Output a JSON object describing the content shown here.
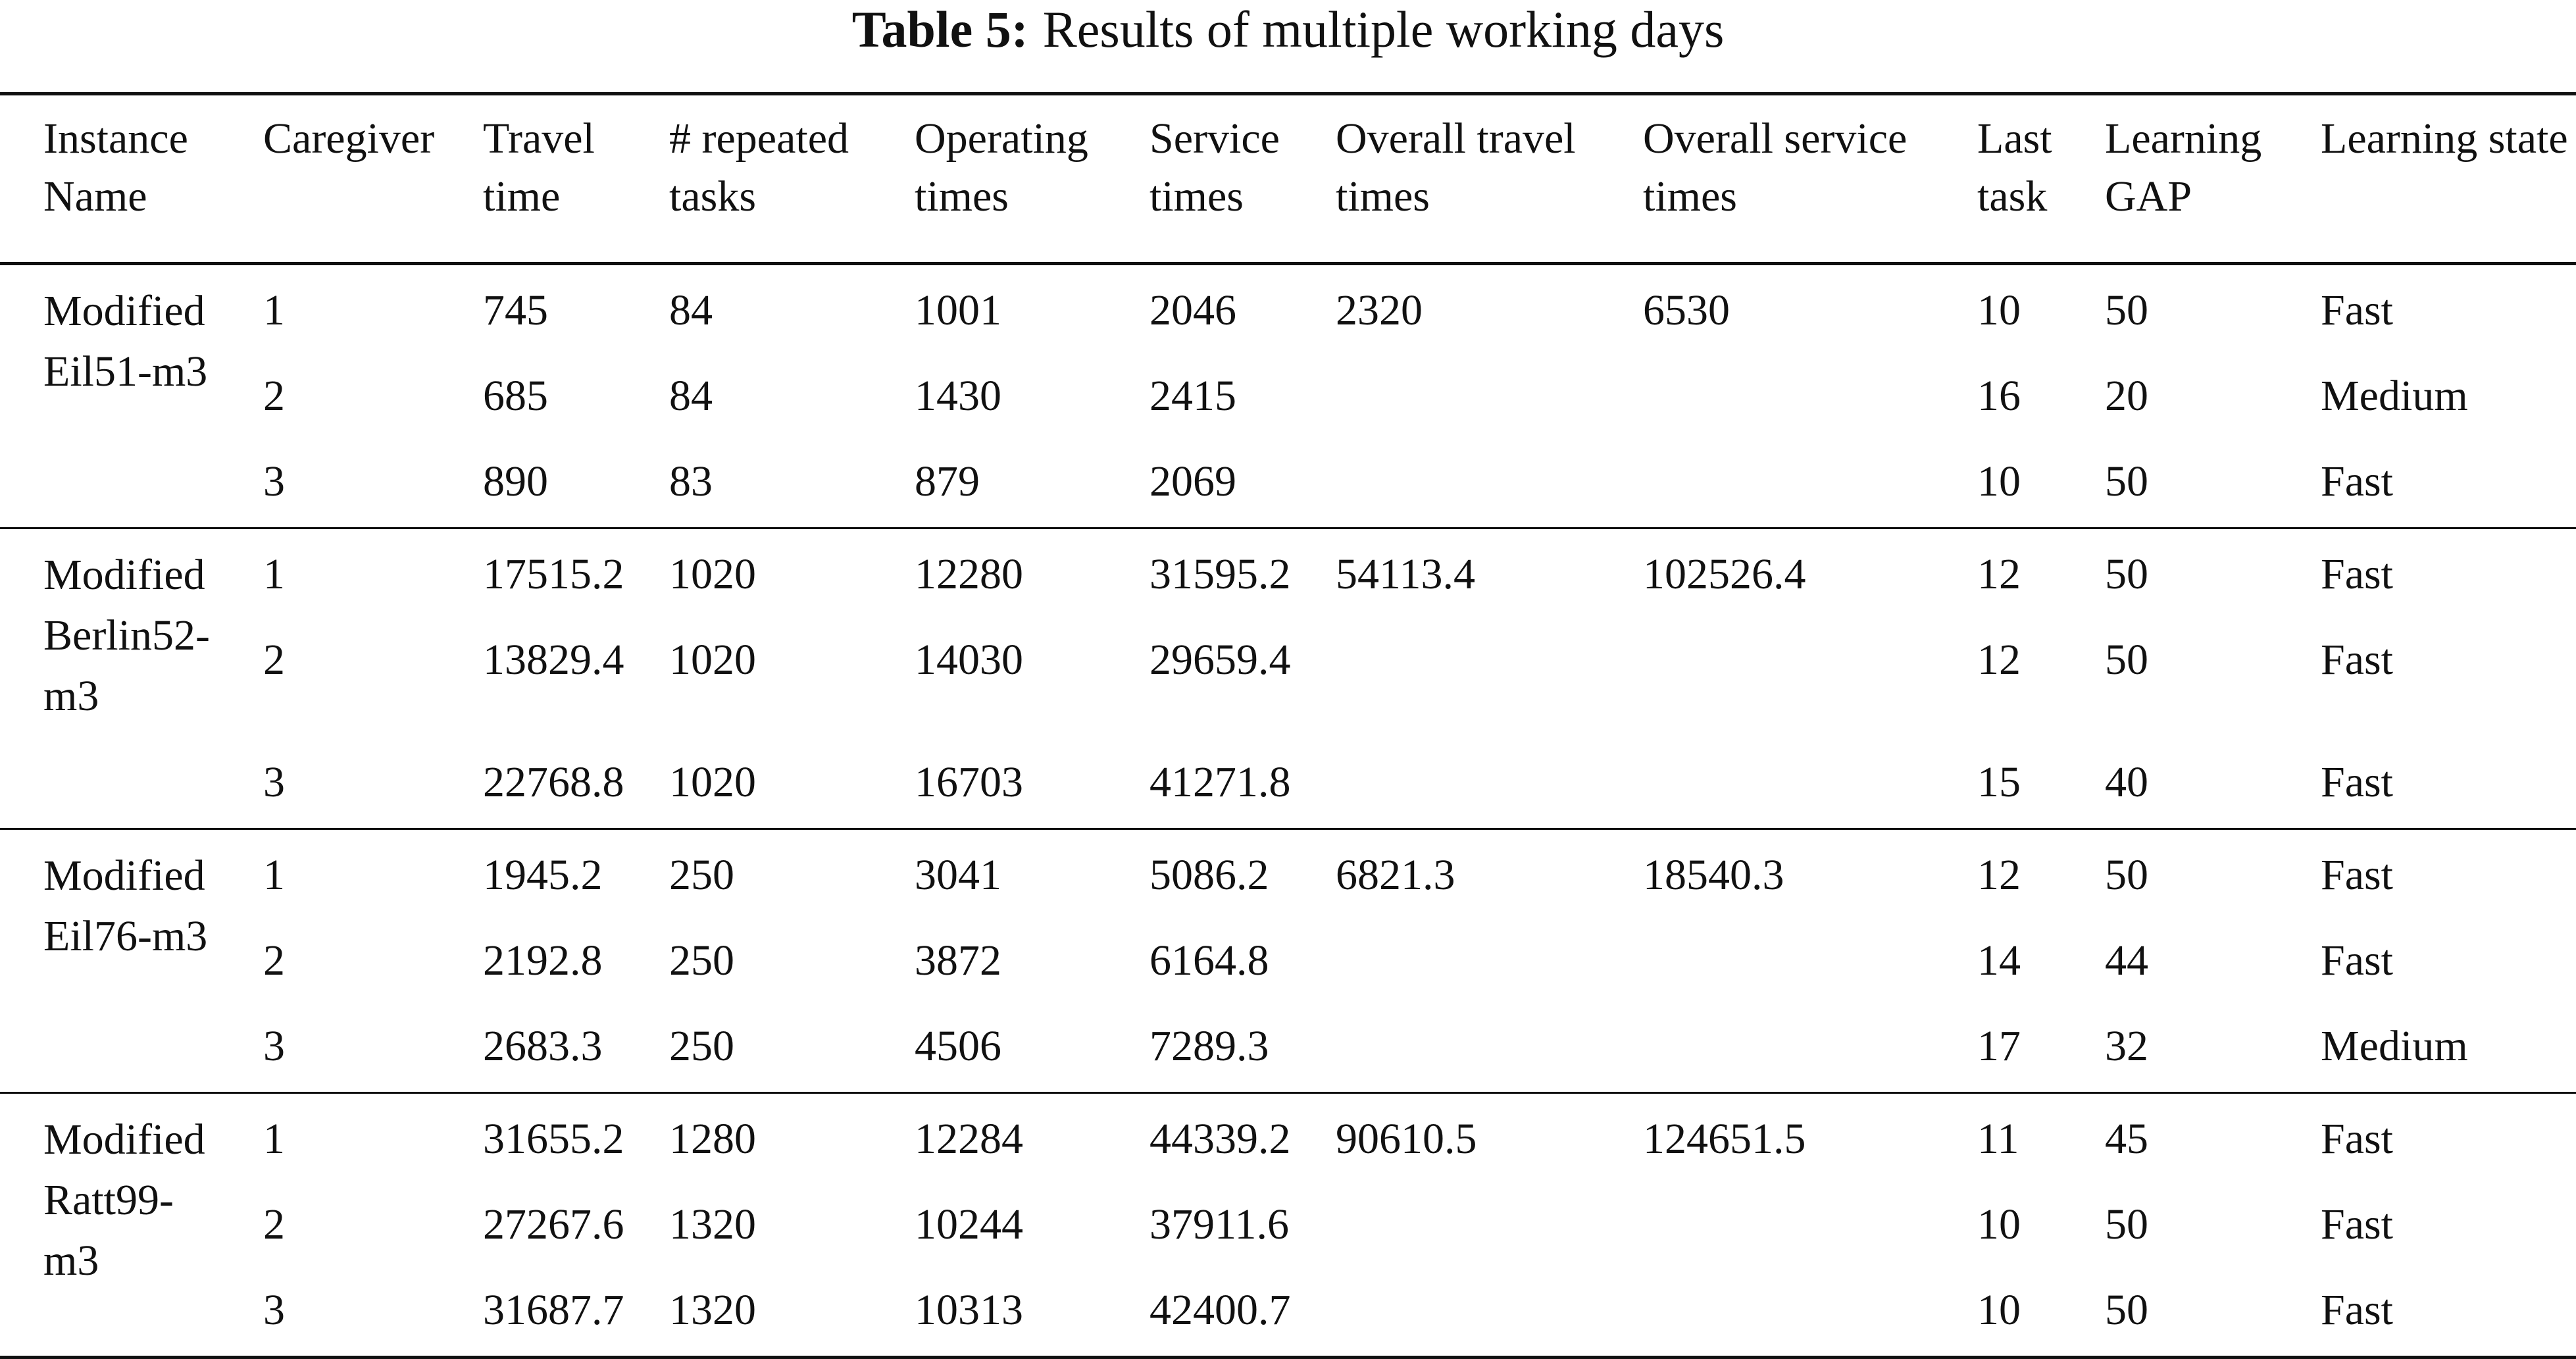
{
  "caption": {
    "label": "Table 5:",
    "text": "Results of multiple working days"
  },
  "columns": [
    "Instance Name",
    "Caregiver",
    "Travel time",
    "# repeated tasks",
    "Operating times",
    "Service times",
    "Overall travel times",
    "Overall service times",
    "Last task",
    "Learning GAP",
    "Learning state"
  ],
  "groups": [
    {
      "instance": "Modified Eil51-m3",
      "overall_travel": "2320",
      "overall_service": "6530",
      "rows": [
        {
          "caregiver": "1",
          "travel": "745",
          "repeated": "84",
          "operating": "1001",
          "service": "2046",
          "last": "10",
          "gap": "50",
          "state": "Fast"
        },
        {
          "caregiver": "2",
          "travel": "685",
          "repeated": "84",
          "operating": "1430",
          "service": "2415",
          "last": "16",
          "gap": "20",
          "state": "Medium"
        },
        {
          "caregiver": "3",
          "travel": "890",
          "repeated": "83",
          "operating": "879",
          "service": "2069",
          "last": "10",
          "gap": "50",
          "state": "Fast"
        }
      ]
    },
    {
      "instance": "Modified Berlin52-m3",
      "overall_travel": "54113.4",
      "overall_service": "102526.4",
      "rows": [
        {
          "caregiver": "1",
          "travel": "17515.2",
          "repeated": "1020",
          "operating": "12280",
          "service": "31595.2",
          "last": "12",
          "gap": "50",
          "state": "Fast"
        },
        {
          "caregiver": "2",
          "travel": "13829.4",
          "repeated": "1020",
          "operating": "14030",
          "service": "29659.4",
          "last": "12",
          "gap": "50",
          "state": "Fast"
        },
        {
          "caregiver": "3",
          "travel": "22768.8",
          "repeated": "1020",
          "operating": "16703",
          "service": "41271.8",
          "last": "15",
          "gap": "40",
          "state": "Fast"
        }
      ]
    },
    {
      "instance": "Modified Eil76-m3",
      "overall_travel": "6821.3",
      "overall_service": "18540.3",
      "rows": [
        {
          "caregiver": "1",
          "travel": "1945.2",
          "repeated": "250",
          "operating": "3041",
          "service": "5086.2",
          "last": "12",
          "gap": "50",
          "state": "Fast"
        },
        {
          "caregiver": "2",
          "travel": "2192.8",
          "repeated": "250",
          "operating": "3872",
          "service": "6164.8",
          "last": "14",
          "gap": "44",
          "state": "Fast"
        },
        {
          "caregiver": "3",
          "travel": "2683.3",
          "repeated": "250",
          "operating": "4506",
          "service": "7289.3",
          "last": "17",
          "gap": "32",
          "state": "Medium"
        }
      ]
    },
    {
      "instance": "Modified Ratt99-m3",
      "overall_travel": "90610.5",
      "overall_service": "124651.5",
      "rows": [
        {
          "caregiver": "1",
          "travel": "31655.2",
          "repeated": "1280",
          "operating": "12284",
          "service": "44339.2",
          "last": "11",
          "gap": "45",
          "state": "Fast"
        },
        {
          "caregiver": "2",
          "travel": "27267.6",
          "repeated": "1320",
          "operating": "10244",
          "service": "37911.6",
          "last": "10",
          "gap": "50",
          "state": "Fast"
        },
        {
          "caregiver": "3",
          "travel": "31687.7",
          "repeated": "1320",
          "operating": "10313",
          "service": "42400.7",
          "last": "10",
          "gap": "50",
          "state": "Fast"
        }
      ]
    }
  ]
}
